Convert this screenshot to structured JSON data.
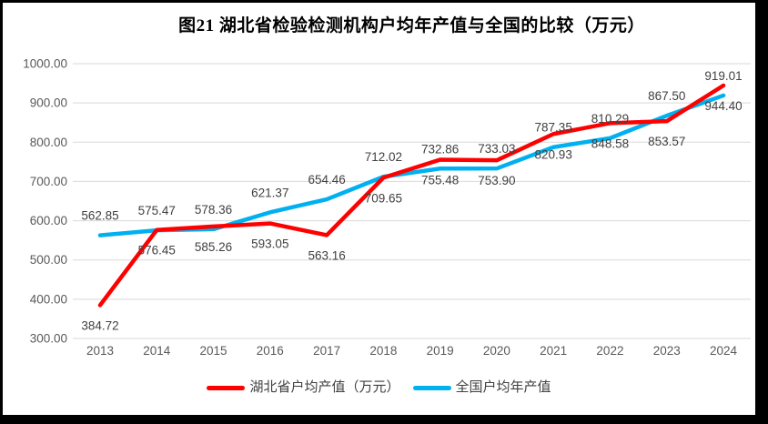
{
  "frame": {
    "border_color": "#000000",
    "canvas_background": "#ffffff"
  },
  "chart_data": {
    "type": "line",
    "title": "图21  湖北省检验检测机构户均年产值与全国的比较（万元）",
    "categories": [
      "2013",
      "2014",
      "2015",
      "2016",
      "2017",
      "2018",
      "2019",
      "2020",
      "2021",
      "2022",
      "2023",
      "2024"
    ],
    "series": [
      {
        "name": "湖北省户均产值（万元）",
        "color": "#FF0000",
        "label_position": "below",
        "values": [
          384.72,
          576.45,
          585.26,
          593.05,
          563.16,
          709.65,
          755.48,
          753.9,
          820.93,
          848.58,
          853.57,
          944.4
        ]
      },
      {
        "name": "全国户均年产值",
        "color": "#00B0F0",
        "label_position": "above",
        "values": [
          562.85,
          575.47,
          578.36,
          621.37,
          654.46,
          712.02,
          732.86,
          733.03,
          787.35,
          810.29,
          867.5,
          919.01
        ]
      }
    ],
    "ylim": [
      300,
      1000
    ],
    "ytick_step": 100,
    "ytick_decimals": 2,
    "data_label_decimals": 2,
    "grid": true,
    "legend_position": "bottom",
    "gridline_color": "#D9D9D9",
    "axis_label_color": "#595959",
    "data_label_color": "#404040"
  }
}
